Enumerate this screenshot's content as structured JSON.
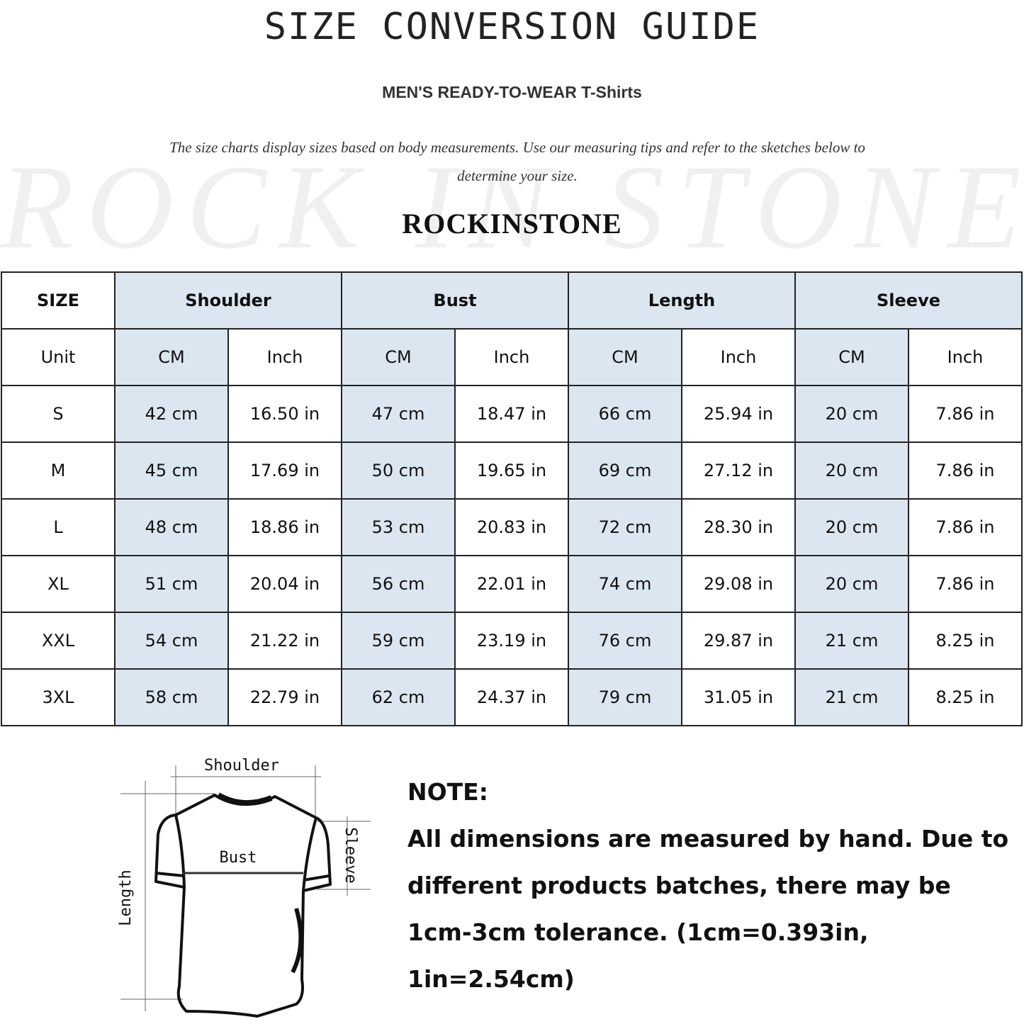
{
  "title": "SIZE CONVERSION GUIDE",
  "subtitle": "MEN'S READY-TO-WEAR T-Shirts",
  "description": "The size charts display sizes based on body measurements. Use our measuring tips and refer to the sketches below to determine your size.",
  "watermark": "ROCK IN STONE",
  "brand": "ROCKINSTONE",
  "colors": {
    "header_fill": "#dce6f1",
    "border": "#222222"
  },
  "table": {
    "size_label": "SIZE",
    "groups": [
      "Shoulder",
      "Bust",
      "Length",
      "Sleeve"
    ],
    "unit_label": "Unit",
    "units": [
      "CM",
      "Inch",
      "CM",
      "Inch",
      "CM",
      "Inch",
      "CM",
      "Inch"
    ],
    "rows": [
      {
        "size": "S",
        "values": [
          "42 cm",
          "16.50 in",
          "47 cm",
          "18.47 in",
          "66 cm",
          "25.94 in",
          "20 cm",
          "7.86 in"
        ]
      },
      {
        "size": "M",
        "values": [
          "45 cm",
          "17.69 in",
          "50 cm",
          "19.65 in",
          "69 cm",
          "27.12 in",
          "20 cm",
          "7.86 in"
        ]
      },
      {
        "size": "L",
        "values": [
          "48 cm",
          "18.86 in",
          "53 cm",
          "20.83 in",
          "72 cm",
          "28.30 in",
          "20 cm",
          "7.86 in"
        ]
      },
      {
        "size": "XL",
        "values": [
          "51 cm",
          "20.04 in",
          "56 cm",
          "22.01 in",
          "74 cm",
          "29.08 in",
          "20 cm",
          "7.86 in"
        ]
      },
      {
        "size": "XXL",
        "values": [
          "54 cm",
          "21.22 in",
          "59 cm",
          "23.19 in",
          "76 cm",
          "29.87 in",
          "21 cm",
          "8.25 in"
        ]
      },
      {
        "size": "3XL",
        "values": [
          "58 cm",
          "22.79 in",
          "62 cm",
          "24.37 in",
          "79 cm",
          "31.05 in",
          "21 cm",
          "8.25 in"
        ]
      }
    ]
  },
  "sketch": {
    "shoulder": "Shoulder",
    "bust": "Bust",
    "length": "Length",
    "sleeve": "Sleeve"
  },
  "note": {
    "heading": "NOTE:",
    "lines": [
      "All dimensions are measured by hand. Due to",
      "different products batches, there may be",
      "1cm-3cm tolerance. (1cm=0.393in, 1in=2.54cm)"
    ]
  }
}
